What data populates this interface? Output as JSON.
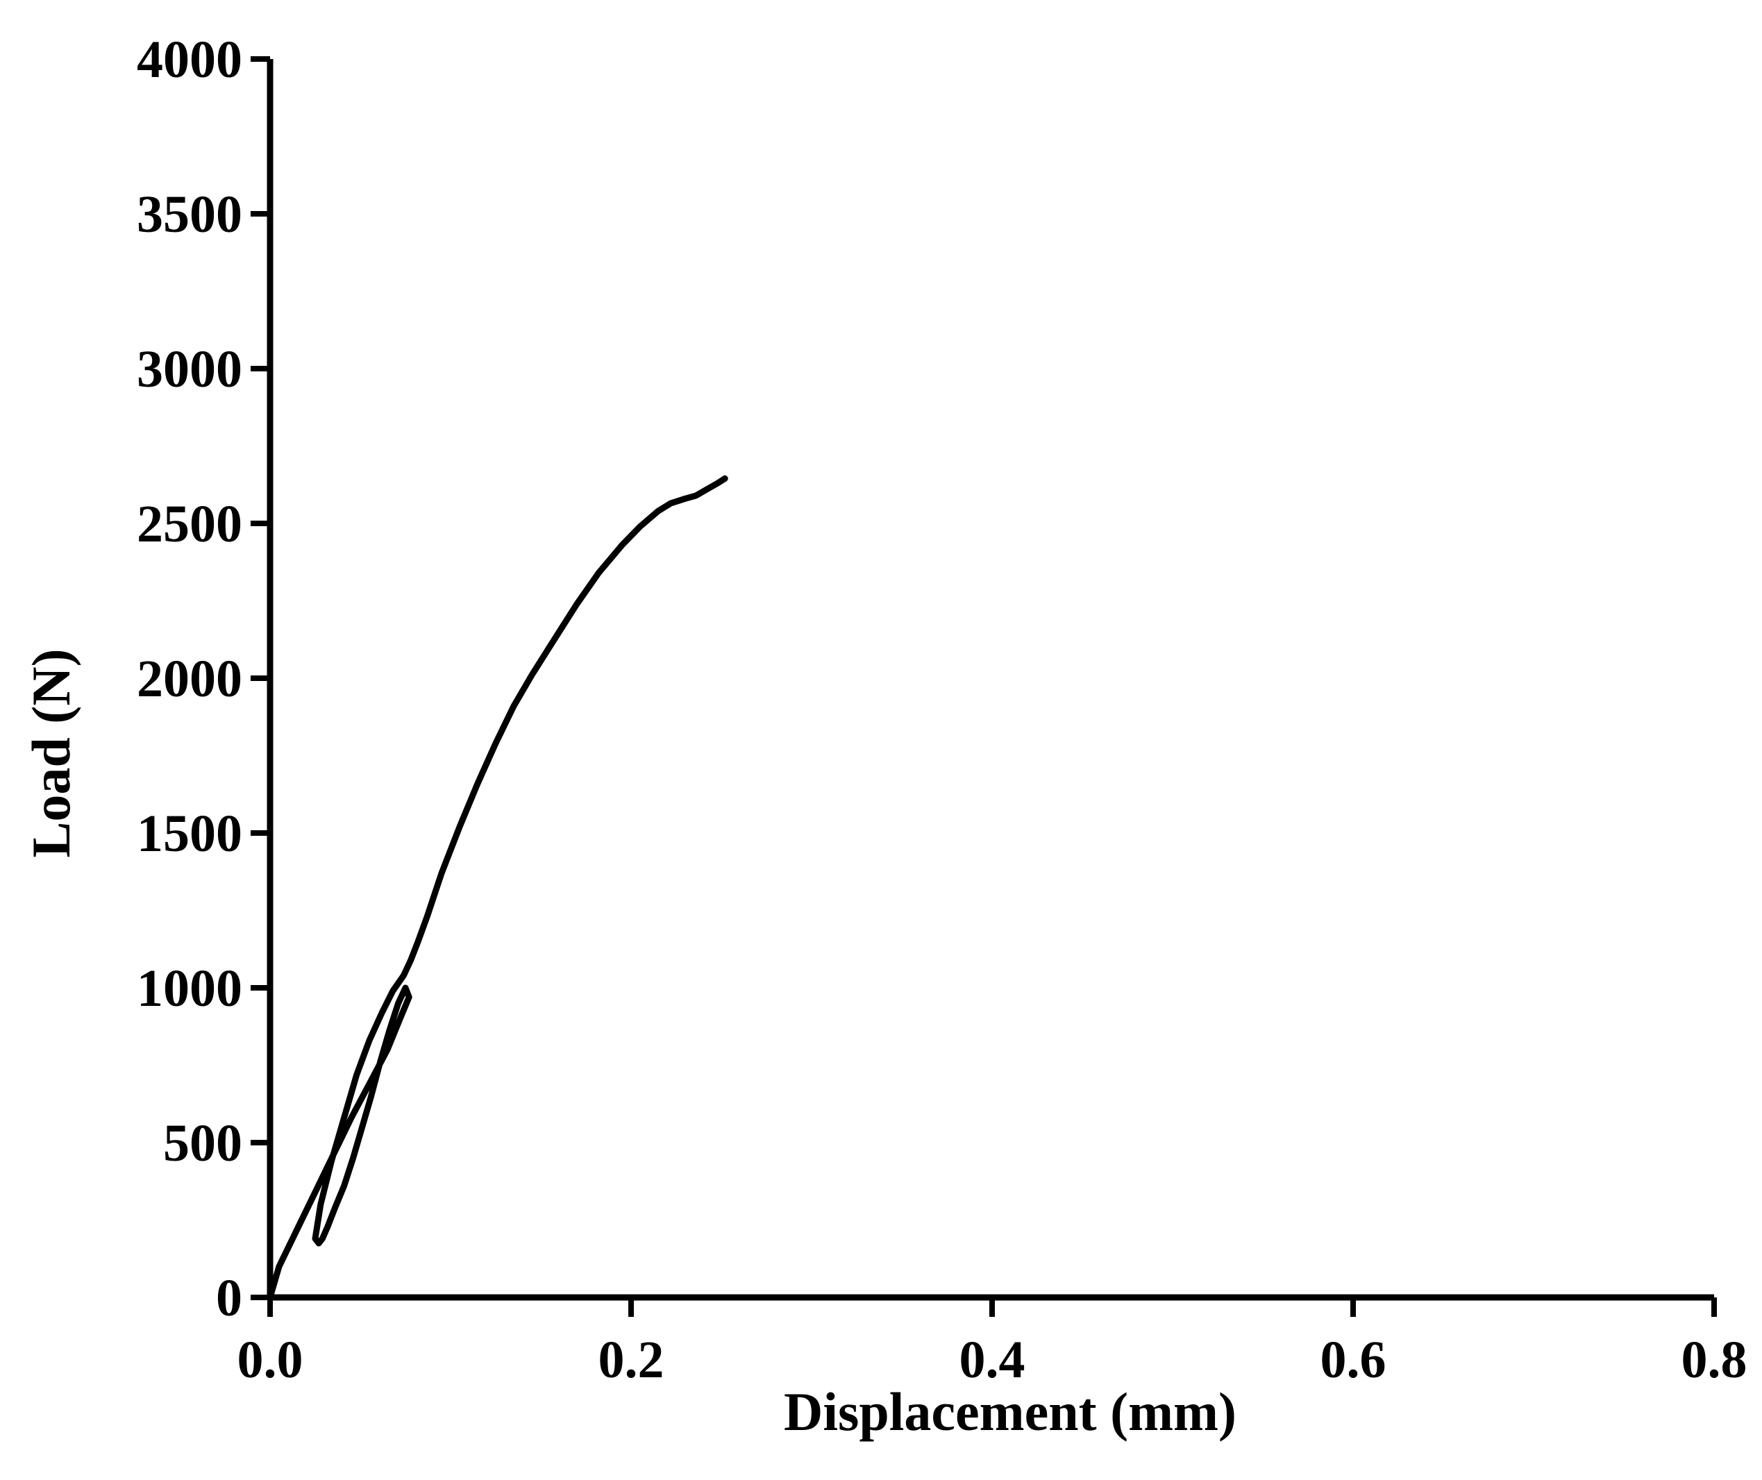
{
  "chart_data": {
    "type": "line",
    "title": "",
    "xlabel": "Displacement (mm)",
    "ylabel": "Load (N)",
    "xlim": [
      0,
      0.8
    ],
    "ylim": [
      0,
      4000
    ],
    "x_ticks": [
      0.0,
      0.2,
      0.4,
      0.6,
      0.8
    ],
    "x_tick_labels": [
      "0.0",
      "0.2",
      "0.4",
      "0.6",
      "0.8"
    ],
    "y_ticks": [
      0,
      500,
      1000,
      1500,
      2000,
      2500,
      3000,
      3500,
      4000
    ],
    "y_tick_labels": [
      "0",
      "500",
      "1000",
      "1500",
      "2000",
      "2500",
      "3000",
      "3500",
      "4000"
    ],
    "grid": false,
    "legend": "none",
    "line_color": "#000000",
    "series": [
      {
        "x": [
          0.0,
          0.005,
          0.015,
          0.025,
          0.035,
          0.045,
          0.055,
          0.065,
          0.072,
          0.077,
          0.075,
          0.071,
          0.066,
          0.061,
          0.056,
          0.051,
          0.046,
          0.041,
          0.036,
          0.032,
          0.029,
          0.027,
          0.025,
          0.028,
          0.034,
          0.041,
          0.048,
          0.055,
          0.062,
          0.068,
          0.074,
          0.078,
          0.082,
          0.087,
          0.095,
          0.105,
          0.115,
          0.125,
          0.135,
          0.145,
          0.158,
          0.17,
          0.182,
          0.195,
          0.205,
          0.215,
          0.222,
          0.23,
          0.236,
          0.242,
          0.248,
          0.252
        ],
        "y": [
          0,
          100,
          220,
          340,
          460,
          580,
          690,
          800,
          900,
          970,
          1000,
          950,
          860,
          760,
          650,
          550,
          450,
          360,
          290,
          230,
          190,
          175,
          190,
          300,
          440,
          580,
          720,
          830,
          920,
          990,
          1040,
          1090,
          1150,
          1230,
          1370,
          1520,
          1660,
          1790,
          1910,
          2010,
          2130,
          2240,
          2340,
          2430,
          2490,
          2540,
          2565,
          2580,
          2590,
          2610,
          2630,
          2645
        ]
      }
    ]
  }
}
